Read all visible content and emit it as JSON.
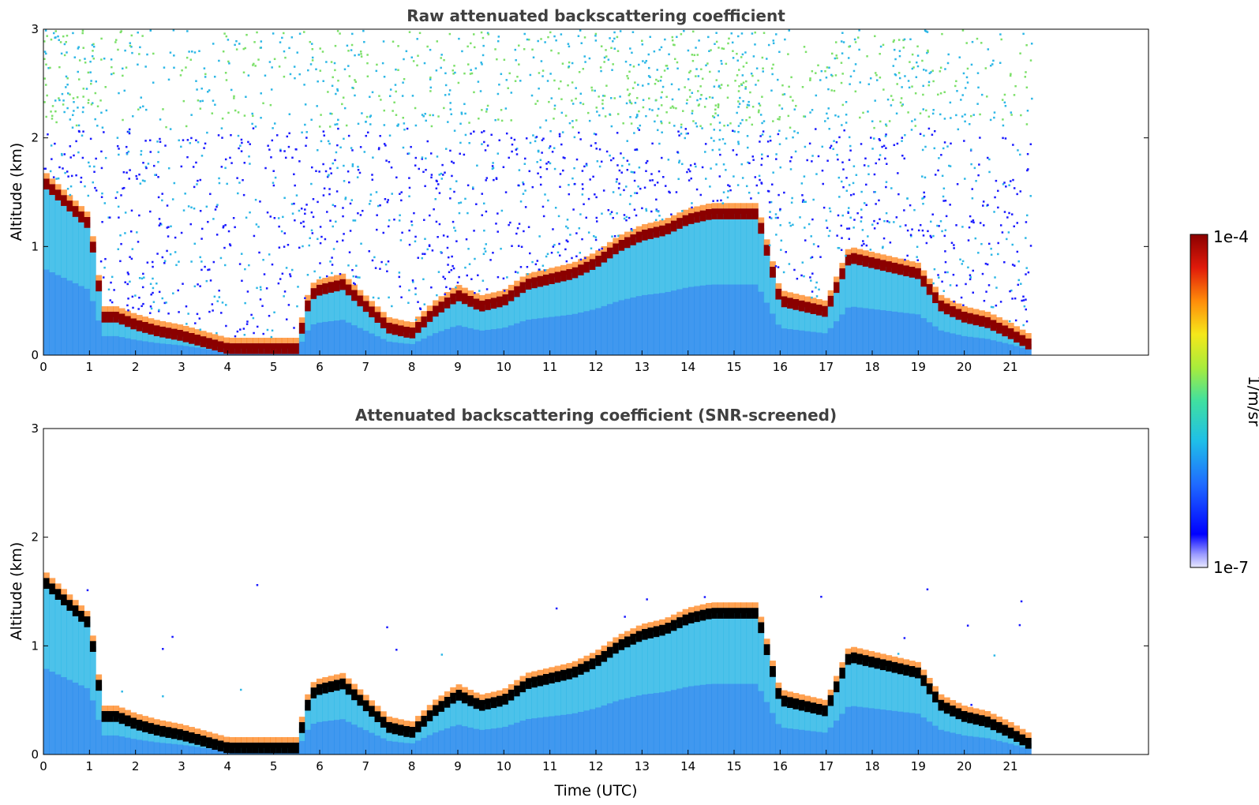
{
  "chart_data": [
    {
      "type": "heatmap",
      "title": "Raw attenuated backscattering coefficient",
      "xlabel": "",
      "ylabel": "Altitude (km)",
      "xlim": [
        0,
        24
      ],
      "ylim": [
        0,
        3
      ],
      "x_ticks": [
        "0",
        "1",
        "2",
        "3",
        "4",
        "5",
        "6",
        "7",
        "8",
        "9",
        "10",
        "11",
        "12",
        "13",
        "14",
        "15",
        "16",
        "17",
        "18",
        "19",
        "20",
        "21"
      ],
      "y_ticks": [
        "0",
        "1",
        "2",
        "3"
      ],
      "data_end_time": 21.45,
      "colorscale": [
        "#1a1aff",
        "#2db7e6",
        "#7de06a",
        "#f0e81e",
        "#ff7a0a",
        "#8b0000"
      ],
      "cloud_layer": {
        "name": "boundary/cloud layer top",
        "x": [
          0,
          0.5,
          1.0,
          1.3,
          1.6,
          2.0,
          2.5,
          3.0,
          3.5,
          4.0,
          4.5,
          5.0,
          5.5,
          5.8,
          6.0,
          6.5,
          7.0,
          7.5,
          8.0,
          8.5,
          9.0,
          9.5,
          10.0,
          10.5,
          11.0,
          11.5,
          12.0,
          12.5,
          13.0,
          13.5,
          14.0,
          14.5,
          15.0,
          15.5,
          16.0,
          16.5,
          17.0,
          17.5,
          18.0,
          18.5,
          19.0,
          19.5,
          20.0,
          20.5,
          21.0,
          21.4
        ],
        "y": [
          1.6,
          1.4,
          1.2,
          0.35,
          0.35,
          0.28,
          0.22,
          0.18,
          0.12,
          0.06,
          0.06,
          0.06,
          0.06,
          0.55,
          0.6,
          0.65,
          0.45,
          0.25,
          0.2,
          0.4,
          0.55,
          0.45,
          0.5,
          0.65,
          0.7,
          0.75,
          0.85,
          1.0,
          1.1,
          1.15,
          1.25,
          1.3,
          1.3,
          1.3,
          0.5,
          0.45,
          0.4,
          0.9,
          0.85,
          0.8,
          0.75,
          0.45,
          0.35,
          0.3,
          0.2,
          0.1
        ]
      }
    },
    {
      "type": "heatmap",
      "title": "Attenuated backscattering coefficient (SNR-screened)",
      "xlabel": "Time (UTC)",
      "ylabel": "Altitude (km)",
      "xlim": [
        0,
        24
      ],
      "ylim": [
        0,
        3
      ],
      "x_ticks": [
        "0",
        "1",
        "2",
        "3",
        "4",
        "5",
        "6",
        "7",
        "8",
        "9",
        "10",
        "11",
        "12",
        "13",
        "14",
        "15",
        "16",
        "17",
        "18",
        "19",
        "20",
        "21"
      ],
      "y_ticks": [
        "0",
        "1",
        "2",
        "3"
      ],
      "data_end_time": 21.45
    },
    {
      "type": "colorbar",
      "label": "1/m/sr",
      "max_label": "1e-4",
      "min_label": "1e-7"
    }
  ]
}
